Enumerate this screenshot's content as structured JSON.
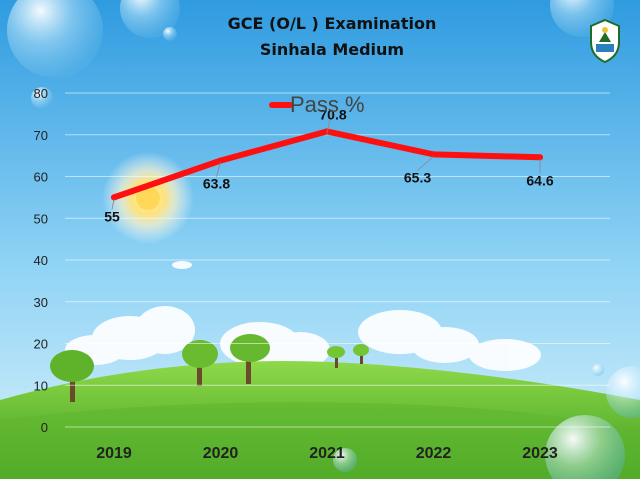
{
  "title_line1": "GCE (O/L ) Examination",
  "title_line2": "Sinhala Medium",
  "colors": {
    "series": "#ff1010",
    "sky": "#7ec8ef",
    "grass": "#6cc23a"
  },
  "logo_icon": "ministry-emblem-icon",
  "chart_data": {
    "type": "line",
    "title": "GCE (O/L ) Examination Sinhala Medium",
    "categories": [
      "2019",
      "2020",
      "2021",
      "2022",
      "2023"
    ],
    "series": [
      {
        "name": "Pass %",
        "values": [
          55,
          63.8,
          70.8,
          65.3,
          64.6
        ],
        "labels": [
          "55",
          "63.8",
          "70.8",
          "65.3",
          "64.6"
        ]
      }
    ],
    "y_ticks": [
      "0",
      "10",
      "20",
      "30",
      "40",
      "50",
      "60",
      "70",
      "80"
    ],
    "ylim": [
      0,
      80
    ],
    "grid": true,
    "legend": "top-center"
  }
}
